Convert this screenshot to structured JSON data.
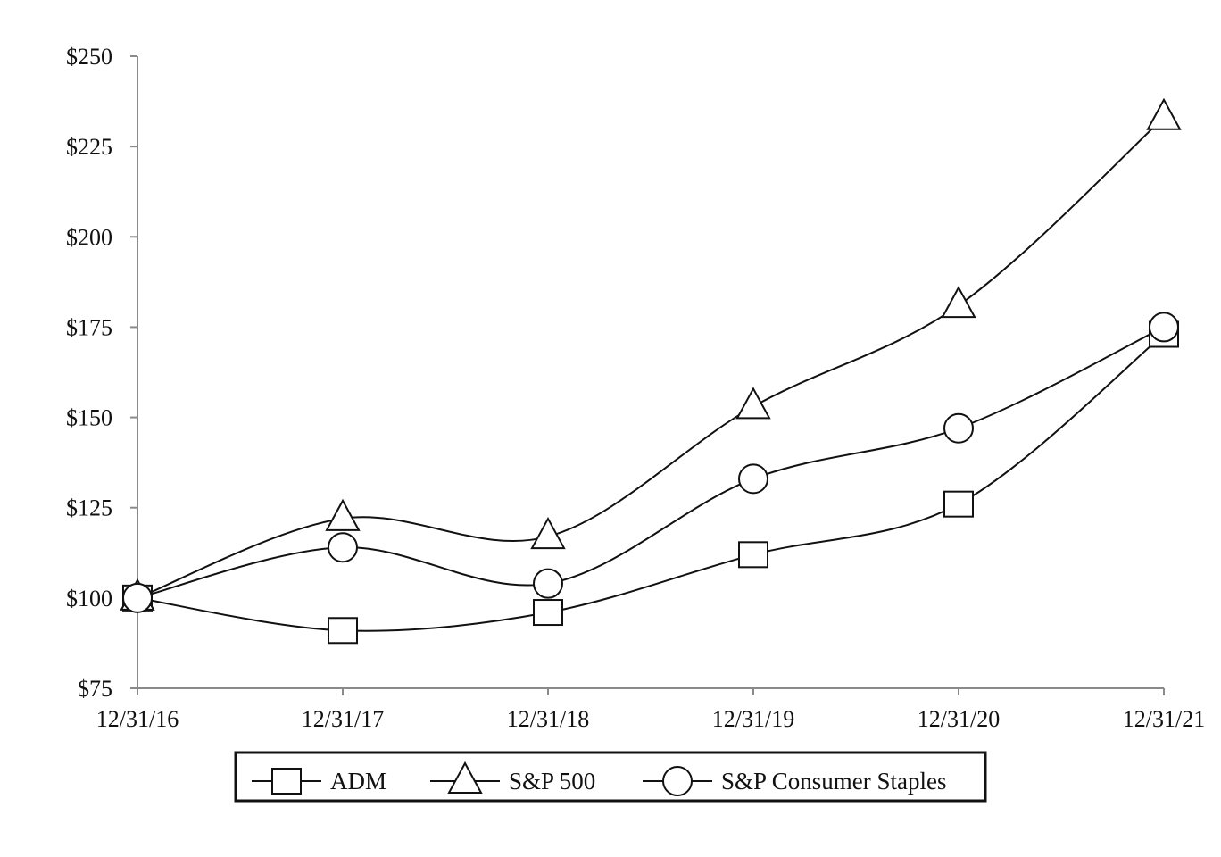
{
  "chart_data": {
    "type": "line",
    "x": [
      "12/31/16",
      "12/31/17",
      "12/31/18",
      "12/31/19",
      "12/31/20",
      "12/31/21"
    ],
    "series": [
      {
        "name": "ADM",
        "marker": "square",
        "values": [
          100,
          91,
          96,
          112,
          126,
          173
        ]
      },
      {
        "name": "S&P 500",
        "marker": "triangle",
        "values": [
          100,
          122,
          117,
          153,
          181,
          233
        ]
      },
      {
        "name": "S&P Consumer Staples",
        "marker": "circle",
        "values": [
          100,
          114,
          104,
          133,
          147,
          175
        ]
      }
    ],
    "yticks": [
      "$75",
      "$100",
      "$125",
      "$150",
      "$175",
      "$200",
      "$225",
      "$250"
    ],
    "ylim": [
      75,
      250
    ],
    "grid": false,
    "legend": "bottom",
    "line_color": "#111111",
    "axis_color": "#8a8a8a"
  }
}
